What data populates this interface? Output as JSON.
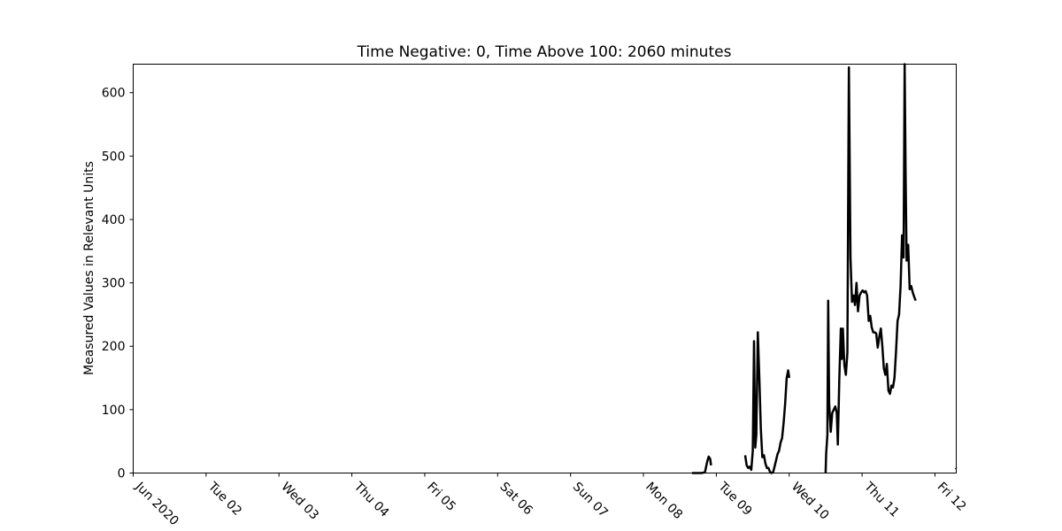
{
  "chart_data": {
    "type": "line",
    "title": "Time Negative: 0, Time Above 100: 2060 minutes",
    "xlabel": "",
    "ylabel": "Measured Values in Relevant Units",
    "x_axis": "date",
    "xlim": [
      "2020-06-01T00:00",
      "2020-06-12T07:00"
    ],
    "ylim": [
      0,
      645
    ],
    "y_ticks": [
      0,
      100,
      200,
      300,
      400,
      500,
      600
    ],
    "x_ticks": [
      {
        "date": "2020-06-01T00:00",
        "label": "Jun 2020"
      },
      {
        "date": "2020-06-02T00:00",
        "label": "Tue 02"
      },
      {
        "date": "2020-06-03T00:00",
        "label": "Wed 03"
      },
      {
        "date": "2020-06-04T00:00",
        "label": "Thu 04"
      },
      {
        "date": "2020-06-05T00:00",
        "label": "Fri 05"
      },
      {
        "date": "2020-06-06T00:00",
        "label": "Sat 06"
      },
      {
        "date": "2020-06-07T00:00",
        "label": "Sun 07"
      },
      {
        "date": "2020-06-08T00:00",
        "label": "Mon 08"
      },
      {
        "date": "2020-06-09T00:00",
        "label": "Tue 09"
      },
      {
        "date": "2020-06-10T00:00",
        "label": "Wed 10"
      },
      {
        "date": "2020-06-11T00:00",
        "label": "Thu 11"
      },
      {
        "date": "2020-06-12T00:00",
        "label": "Fri 12"
      }
    ],
    "grid": false,
    "line_color": "#000000",
    "segments": [
      {
        "points": [
          [
            "2020-06-08T16:00",
            0
          ],
          [
            "2020-06-08T19:00",
            0
          ],
          [
            "2020-06-08T20:15",
            1
          ],
          [
            "2020-06-08T21:00",
            18
          ],
          [
            "2020-06-08T21:30",
            26
          ],
          [
            "2020-06-08T22:00",
            22
          ],
          [
            "2020-06-08T22:15",
            12
          ]
        ]
      },
      {
        "points": [
          [
            "2020-06-09T09:30",
            28
          ],
          [
            "2020-06-09T10:00",
            12
          ],
          [
            "2020-06-09T10:30",
            8
          ],
          [
            "2020-06-09T11:00",
            10
          ],
          [
            "2020-06-09T11:30",
            5
          ],
          [
            "2020-06-09T12:00",
            35
          ],
          [
            "2020-06-09T12:25",
            208
          ],
          [
            "2020-06-09T12:50",
            40
          ],
          [
            "2020-06-09T13:10",
            60
          ],
          [
            "2020-06-09T13:40",
            222
          ],
          [
            "2020-06-09T14:10",
            150
          ],
          [
            "2020-06-09T14:40",
            70
          ],
          [
            "2020-06-09T15:10",
            25
          ],
          [
            "2020-06-09T15:40",
            28
          ],
          [
            "2020-06-09T16:10",
            15
          ],
          [
            "2020-06-09T16:40",
            8
          ],
          [
            "2020-06-09T17:10",
            8
          ],
          [
            "2020-06-09T17:40",
            2
          ],
          [
            "2020-06-09T18:10",
            0
          ],
          [
            "2020-06-09T18:40",
            1
          ],
          [
            "2020-06-09T19:10",
            10
          ],
          [
            "2020-06-09T19:40",
            20
          ],
          [
            "2020-06-09T20:10",
            30
          ],
          [
            "2020-06-09T20:40",
            35
          ],
          [
            "2020-06-09T21:10",
            48
          ],
          [
            "2020-06-09T21:40",
            55
          ],
          [
            "2020-06-09T22:10",
            80
          ],
          [
            "2020-06-09T22:40",
            110
          ],
          [
            "2020-06-09T23:10",
            150
          ],
          [
            "2020-06-09T23:40",
            162
          ],
          [
            "2020-06-10T00:00",
            150
          ]
        ]
      },
      {
        "points": [
          [
            "2020-06-10T12:00",
            0
          ],
          [
            "2020-06-10T12:10",
            30
          ],
          [
            "2020-06-10T12:35",
            60
          ],
          [
            "2020-06-10T12:50",
            272
          ],
          [
            "2020-06-10T13:10",
            110
          ],
          [
            "2020-06-10T13:40",
            65
          ],
          [
            "2020-06-10T14:10",
            95
          ],
          [
            "2020-06-10T14:40",
            100
          ],
          [
            "2020-06-10T15:10",
            105
          ],
          [
            "2020-06-10T15:40",
            95
          ],
          [
            "2020-06-10T16:00",
            45
          ],
          [
            "2020-06-10T16:30",
            150
          ],
          [
            "2020-06-10T17:00",
            228
          ],
          [
            "2020-06-10T17:20",
            180
          ],
          [
            "2020-06-10T17:40",
            228
          ],
          [
            "2020-06-10T18:10",
            170
          ],
          [
            "2020-06-10T18:40",
            155
          ],
          [
            "2020-06-10T19:10",
            190
          ],
          [
            "2020-06-10T19:40",
            640
          ],
          [
            "2020-06-10T20:10",
            340
          ],
          [
            "2020-06-10T20:40",
            270
          ],
          [
            "2020-06-10T21:10",
            280
          ],
          [
            "2020-06-10T21:40",
            265
          ],
          [
            "2020-06-10T22:10",
            300
          ],
          [
            "2020-06-10T22:40",
            255
          ],
          [
            "2020-06-10T23:10",
            280
          ],
          [
            "2020-06-10T23:40",
            285
          ],
          [
            "2020-06-11T00:10",
            288
          ],
          [
            "2020-06-11T00:40",
            285
          ],
          [
            "2020-06-11T01:10",
            287
          ],
          [
            "2020-06-11T01:40",
            280
          ],
          [
            "2020-06-11T02:10",
            240
          ],
          [
            "2020-06-11T02:40",
            248
          ],
          [
            "2020-06-11T03:10",
            230
          ],
          [
            "2020-06-11T03:40",
            222
          ],
          [
            "2020-06-11T04:10",
            222
          ],
          [
            "2020-06-11T04:40",
            220
          ],
          [
            "2020-06-11T05:10",
            198
          ],
          [
            "2020-06-11T05:40",
            215
          ],
          [
            "2020-06-11T06:10",
            228
          ],
          [
            "2020-06-11T06:40",
            200
          ],
          [
            "2020-06-11T07:10",
            165
          ],
          [
            "2020-06-11T07:40",
            155
          ],
          [
            "2020-06-11T08:10",
            172
          ],
          [
            "2020-06-11T08:40",
            130
          ],
          [
            "2020-06-11T09:10",
            125
          ],
          [
            "2020-06-11T09:40",
            138
          ],
          [
            "2020-06-11T10:10",
            135
          ],
          [
            "2020-06-11T10:40",
            150
          ],
          [
            "2020-06-11T11:10",
            190
          ],
          [
            "2020-06-11T11:40",
            240
          ],
          [
            "2020-06-11T12:10",
            250
          ],
          [
            "2020-06-11T12:40",
            295
          ],
          [
            "2020-06-11T13:10",
            375
          ],
          [
            "2020-06-11T13:40",
            340
          ],
          [
            "2020-06-11T14:00",
            645
          ],
          [
            "2020-06-11T14:20",
            470
          ],
          [
            "2020-06-11T14:40",
            335
          ],
          [
            "2020-06-11T15:10",
            360
          ],
          [
            "2020-06-11T15:40",
            290
          ],
          [
            "2020-06-11T16:10",
            295
          ],
          [
            "2020-06-11T16:40",
            285
          ],
          [
            "2020-06-11T17:10",
            278
          ],
          [
            "2020-06-11T17:40",
            272
          ]
        ]
      },
      {
        "points": [
          [
            "2020-06-12T06:50",
            8
          ],
          [
            "2020-06-12T07:00",
            7
          ]
        ]
      }
    ]
  }
}
